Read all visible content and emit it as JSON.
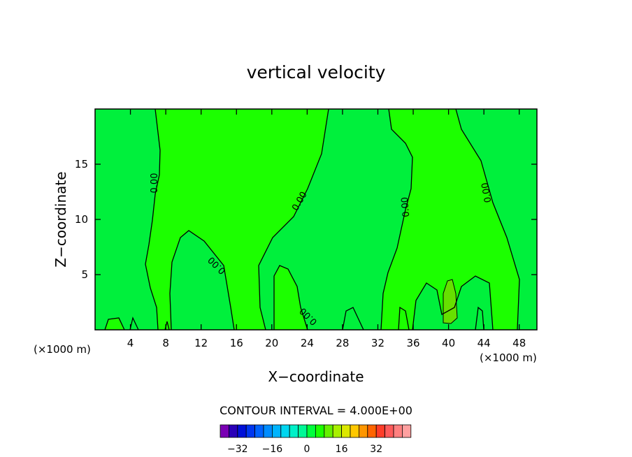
{
  "chart_data": {
    "type": "contour",
    "title": "vertical velocity",
    "xlabel": "X−coordinate",
    "ylabel": "Z−coordinate",
    "x_unit": "(×1000 m)",
    "y_unit": "(×1000 m)",
    "xlim": [
      0,
      50
    ],
    "ylim": [
      0,
      20
    ],
    "x_ticks": [
      4,
      8,
      12,
      16,
      20,
      24,
      28,
      32,
      36,
      40,
      44,
      48
    ],
    "y_ticks": [
      5,
      10,
      15
    ],
    "contour_label": "0.00",
    "contour_interval_text": "CONTOUR INTERVAL = 4.000E+00",
    "colorbar": {
      "ticks": [
        "−32",
        "−16",
        "0",
        "16",
        "32"
      ],
      "tick_values": [
        -32,
        -16,
        0,
        16,
        32
      ],
      "colors": [
        "#7a00b4",
        "#2a00b8",
        "#0010d8",
        "#0036f0",
        "#0062ff",
        "#008cff",
        "#00b4ff",
        "#00d6f0",
        "#00f0c8",
        "#00f896",
        "#00ff3c",
        "#1cff00",
        "#66f000",
        "#a8f000",
        "#dce800",
        "#ffc800",
        "#ff9600",
        "#ff6400",
        "#ff3c28",
        "#ff5a5a",
        "#ff8080",
        "#ffa0a0"
      ]
    },
    "regions": {
      "positive_color": "#1cff00",
      "negative_color": "#00f03c",
      "max_color": "#66e000"
    }
  }
}
